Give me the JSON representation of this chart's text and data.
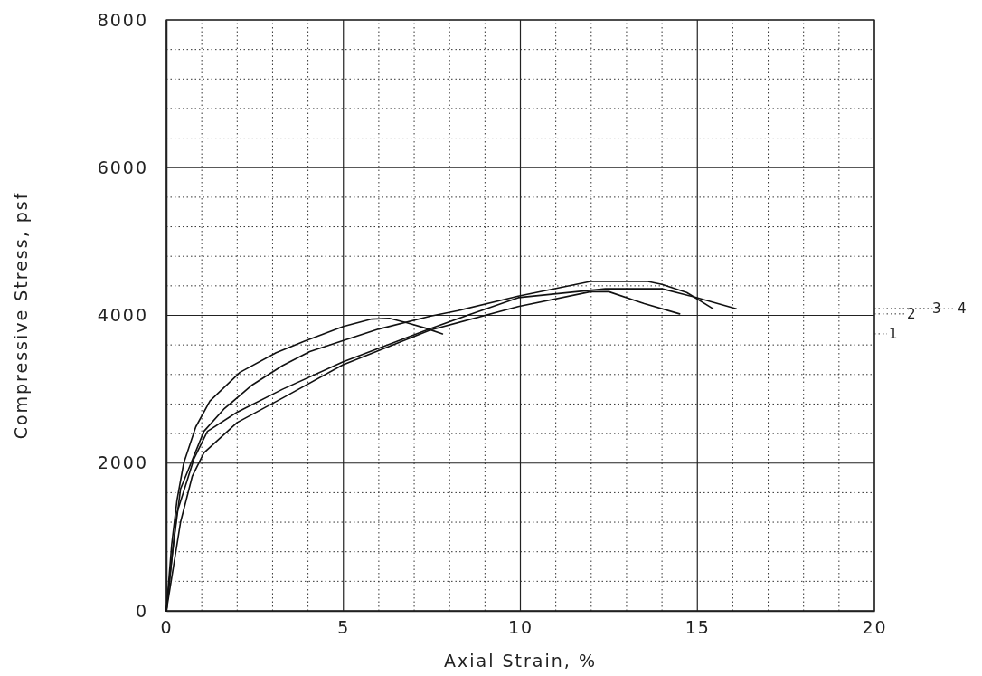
{
  "chart_data": {
    "type": "line",
    "xlabel": "Axial Strain, %",
    "ylabel": "Compressive Stress, psf",
    "xlim": [
      0,
      20
    ],
    "xticks": [
      0,
      5,
      10,
      15,
      20
    ],
    "ylim": [
      0,
      8000
    ],
    "yticks": [
      0,
      2000,
      4000,
      6000,
      8000
    ],
    "grid": true,
    "legend": false,
    "marker": "none",
    "line_style": "solid",
    "series": [
      {
        "name": "1",
        "color": "#111111",
        "x": [
          0,
          0.15,
          0.3,
          0.49,
          0.83,
          1.23,
          2.08,
          3.1,
          3.9,
          5.0,
          5.8,
          6.3,
          6.8,
          7.3,
          7.8
        ],
        "values": [
          0,
          900,
          1500,
          2000,
          2490,
          2840,
          3230,
          3495,
          3650,
          3850,
          3950,
          3960,
          3900,
          3830,
          3750
        ]
      },
      {
        "name": "2",
        "color": "#111111",
        "x": [
          0,
          0.2,
          0.4,
          0.73,
          1.06,
          2.0,
          3.28,
          4.98,
          7.45,
          9.94,
          11.98,
          12.5,
          13.5,
          14.5
        ],
        "values": [
          0,
          600,
          1200,
          1820,
          2140,
          2550,
          2880,
          3330,
          3800,
          4120,
          4320,
          4320,
          4160,
          4020
        ]
      },
      {
        "name": "3",
        "color": "#111111",
        "x": [
          0,
          0.2,
          0.4,
          0.78,
          1.06,
          1.62,
          2.43,
          3.28,
          4.05,
          5.0,
          6.0,
          7.47,
          8.24,
          9.94,
          11.98,
          13.6,
          14.0,
          14.7,
          15.44
        ],
        "values": [
          0,
          900,
          1650,
          2100,
          2430,
          2730,
          3060,
          3320,
          3510,
          3660,
          3815,
          3990,
          4065,
          4260,
          4460,
          4460,
          4420,
          4310,
          4090
        ]
      },
      {
        "name": "4",
        "color": "#111111",
        "x": [
          0,
          0.15,
          0.3,
          0.78,
          1.16,
          2.0,
          3.28,
          4.98,
          7.45,
          8.5,
          9.94,
          12.4,
          14.0,
          14.9,
          16.1
        ],
        "values": [
          0,
          700,
          1330,
          2060,
          2430,
          2690,
          3000,
          3370,
          3820,
          4000,
          4240,
          4360,
          4360,
          4250,
          4090
        ]
      }
    ]
  }
}
